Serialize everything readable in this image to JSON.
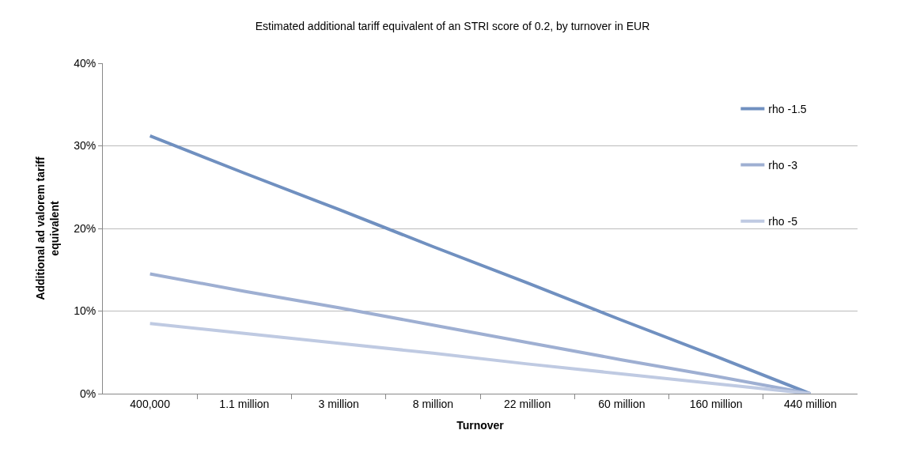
{
  "chart_data": {
    "type": "line",
    "title": "Estimated additional tariff equivalent of an STRI score of 0.2, by turnover in EUR",
    "xlabel": "Turnover",
    "ylabel": "Additional ad valorem tariff\nequivalent",
    "categories": [
      "400,000",
      "1.1 million",
      "3 million",
      "8 million",
      "22 million",
      "60 million",
      "160 million",
      "440 million"
    ],
    "series": [
      {
        "name": "rho -1.5",
        "color": "#7090c0",
        "values": [
          31.2,
          26.7,
          22.3,
          17.8,
          13.4,
          8.9,
          4.5,
          0
        ]
      },
      {
        "name": "rho -3",
        "color": "#9eafd2",
        "values": [
          14.5,
          12.4,
          10.4,
          8.3,
          6.2,
          4.1,
          2.1,
          0
        ]
      },
      {
        "name": "rho -5",
        "color": "#bfcae2",
        "values": [
          8.5,
          7.3,
          6.1,
          4.9,
          3.6,
          2.4,
          1.2,
          0
        ]
      }
    ],
    "ylim": [
      0,
      40
    ],
    "yticks": [
      {
        "value": 0,
        "label": "0%"
      },
      {
        "value": 10,
        "label": "10%"
      },
      {
        "value": 20,
        "label": "20%"
      },
      {
        "value": 30,
        "label": "30%"
      },
      {
        "value": 40,
        "label": "40%"
      }
    ],
    "grid": "y",
    "legend": "right",
    "marker": "none",
    "line_style": "solid"
  }
}
